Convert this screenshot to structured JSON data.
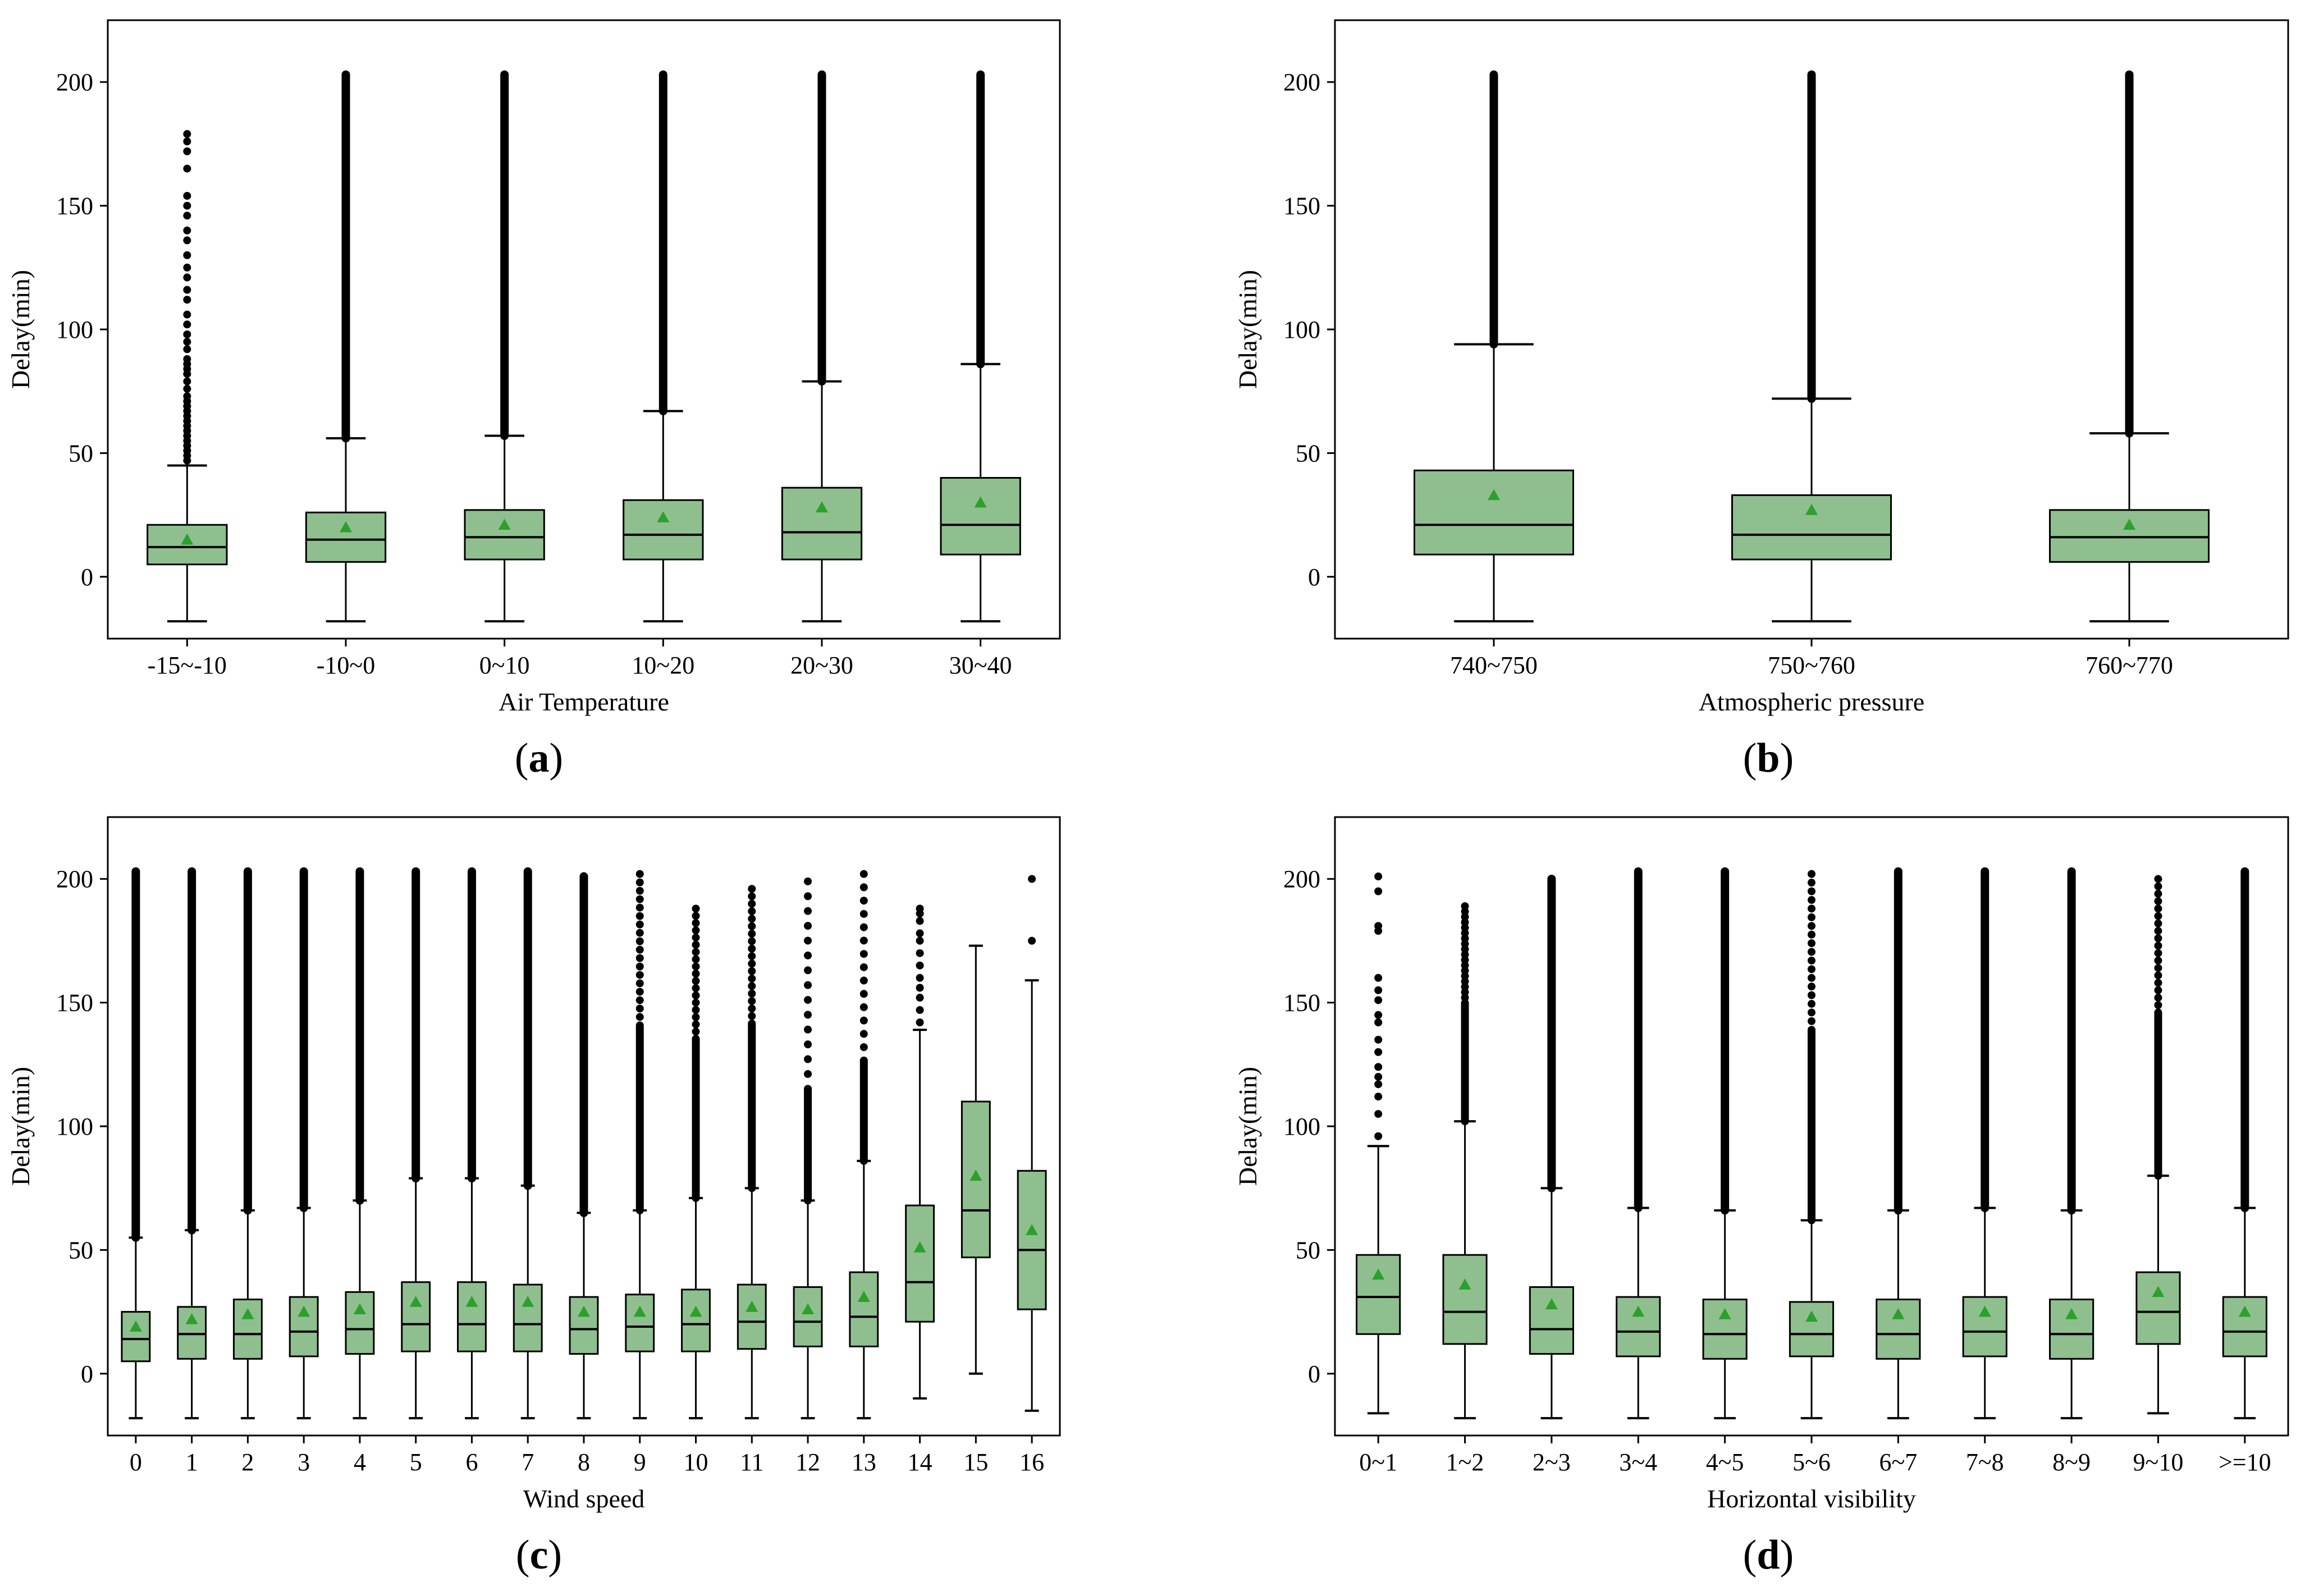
{
  "colors": {
    "box_fill": "#8fbf8f",
    "mean_marker": "#2ca02c",
    "line": "#000000"
  },
  "chart_data": [
    {
      "type": "boxplot",
      "panel_label": "a",
      "xlabel": "Air Temperature",
      "ylabel": "Delay(min)",
      "ylim": [
        -25,
        225
      ],
      "yticks": [
        0,
        50,
        100,
        150,
        200
      ],
      "categories": [
        "-15~-10",
        "-10~0",
        "0~10",
        "10~20",
        "20~30",
        "30~40"
      ],
      "boxes": [
        {
          "whislo": -18,
          "q1": 5,
          "med": 12,
          "q3": 21,
          "whishi": 45,
          "mean": 15,
          "flier_max": 179,
          "flier_mode": "sparse",
          "sparse_fliers": [
            47,
            49,
            51,
            53,
            55,
            57,
            59,
            61,
            63,
            65,
            67,
            69,
            71,
            73,
            76,
            79,
            82,
            84,
            86,
            88,
            92,
            95,
            98,
            102,
            106,
            112,
            116,
            121,
            125,
            130,
            136,
            140,
            146,
            150,
            154,
            165,
            172,
            176,
            179
          ]
        },
        {
          "whislo": -18,
          "q1": 6,
          "med": 15,
          "q3": 26,
          "whishi": 56,
          "mean": 20,
          "flier_max": 203,
          "flier_mode": "dense"
        },
        {
          "whislo": -18,
          "q1": 7,
          "med": 16,
          "q3": 27,
          "whishi": 57,
          "mean": 21,
          "flier_max": 203,
          "flier_mode": "dense"
        },
        {
          "whislo": -18,
          "q1": 7,
          "med": 17,
          "q3": 31,
          "whishi": 67,
          "mean": 24,
          "flier_max": 203,
          "flier_mode": "dense"
        },
        {
          "whislo": -18,
          "q1": 7,
          "med": 18,
          "q3": 36,
          "whishi": 79,
          "mean": 28,
          "flier_max": 203,
          "flier_mode": "dense"
        },
        {
          "whislo": -18,
          "q1": 9,
          "med": 21,
          "q3": 40,
          "whishi": 86,
          "mean": 30,
          "flier_max": 203,
          "flier_mode": "dense"
        }
      ]
    },
    {
      "type": "boxplot",
      "panel_label": "b",
      "xlabel": "Atmospheric pressure",
      "ylabel": "Delay(min)",
      "ylim": [
        -25,
        225
      ],
      "yticks": [
        0,
        50,
        100,
        150,
        200
      ],
      "categories": [
        "740~750",
        "750~760",
        "760~770"
      ],
      "boxes": [
        {
          "whislo": -18,
          "q1": 9,
          "med": 21,
          "q3": 43,
          "whishi": 94,
          "mean": 33,
          "flier_max": 203,
          "flier_mode": "dense"
        },
        {
          "whislo": -18,
          "q1": 7,
          "med": 17,
          "q3": 33,
          "whishi": 72,
          "mean": 27,
          "flier_max": 203,
          "flier_mode": "dense"
        },
        {
          "whislo": -18,
          "q1": 6,
          "med": 16,
          "q3": 27,
          "whishi": 58,
          "mean": 21,
          "flier_max": 203,
          "flier_mode": "dense"
        }
      ]
    },
    {
      "type": "boxplot",
      "panel_label": "c",
      "xlabel": "Wind speed",
      "ylabel": "Delay(min)",
      "ylim": [
        -25,
        225
      ],
      "yticks": [
        0,
        50,
        100,
        150,
        200
      ],
      "categories": [
        "0",
        "1",
        "2",
        "3",
        "4",
        "5",
        "6",
        "7",
        "8",
        "9",
        "10",
        "11",
        "12",
        "13",
        "14",
        "15",
        "16"
      ],
      "boxes": [
        {
          "whislo": -18,
          "q1": 5,
          "med": 14,
          "q3": 25,
          "whishi": 55,
          "mean": 19,
          "flier_max": 203,
          "flier_mode": "dense"
        },
        {
          "whislo": -18,
          "q1": 6,
          "med": 16,
          "q3": 27,
          "whishi": 58,
          "mean": 22,
          "flier_max": 203,
          "flier_mode": "dense"
        },
        {
          "whislo": -18,
          "q1": 6,
          "med": 16,
          "q3": 30,
          "whishi": 66,
          "mean": 24,
          "flier_max": 203,
          "flier_mode": "dense"
        },
        {
          "whislo": -18,
          "q1": 7,
          "med": 17,
          "q3": 31,
          "whishi": 67,
          "mean": 25,
          "flier_max": 203,
          "flier_mode": "dense"
        },
        {
          "whislo": -18,
          "q1": 8,
          "med": 18,
          "q3": 33,
          "whishi": 70,
          "mean": 26,
          "flier_max": 203,
          "flier_mode": "dense"
        },
        {
          "whislo": -18,
          "q1": 9,
          "med": 20,
          "q3": 37,
          "whishi": 79,
          "mean": 29,
          "flier_max": 203,
          "flier_mode": "dense"
        },
        {
          "whislo": -18,
          "q1": 9,
          "med": 20,
          "q3": 37,
          "whishi": 79,
          "mean": 29,
          "flier_max": 203,
          "flier_mode": "dense"
        },
        {
          "whislo": -18,
          "q1": 9,
          "med": 20,
          "q3": 36,
          "whishi": 76,
          "mean": 29,
          "flier_max": 203,
          "flier_mode": "dense"
        },
        {
          "whislo": -18,
          "q1": 8,
          "med": 18,
          "q3": 31,
          "whishi": 65,
          "mean": 25,
          "flier_max": 201,
          "flier_mode": "dense"
        },
        {
          "whislo": -18,
          "q1": 9,
          "med": 19,
          "q3": 32,
          "whishi": 66,
          "mean": 25,
          "flier_max": 202,
          "flier_mode": "medium"
        },
        {
          "whislo": -18,
          "q1": 9,
          "med": 20,
          "q3": 34,
          "whishi": 71,
          "mean": 25,
          "flier_max": 188,
          "flier_mode": "medium"
        },
        {
          "whislo": -18,
          "q1": 10,
          "med": 21,
          "q3": 36,
          "whishi": 75,
          "mean": 27,
          "flier_max": 196,
          "flier_mode": "medium"
        },
        {
          "whislo": -18,
          "q1": 11,
          "med": 21,
          "q3": 35,
          "whishi": 70,
          "mean": 26,
          "flier_max": 199,
          "flier_mode": "light"
        },
        {
          "whislo": -18,
          "q1": 11,
          "med": 23,
          "q3": 41,
          "whishi": 86,
          "mean": 31,
          "flier_max": 202,
          "flier_mode": "light"
        },
        {
          "whislo": -10,
          "q1": 21,
          "med": 37,
          "q3": 68,
          "whishi": 139,
          "mean": 51,
          "flier_max": 188,
          "flier_mode": "sparse",
          "sparse_fliers": [
            142,
            147,
            152,
            156,
            160,
            165,
            170,
            175,
            178,
            183,
            186,
            188
          ]
        },
        {
          "whislo": 0,
          "q1": 47,
          "med": 66,
          "q3": 110,
          "whishi": 173,
          "mean": 80,
          "flier_max": 173,
          "flier_mode": "none"
        },
        {
          "whislo": -15,
          "q1": 26,
          "med": 50,
          "q3": 82,
          "whishi": 159,
          "mean": 58,
          "flier_max": 200,
          "flier_mode": "sparse",
          "sparse_fliers": [
            175,
            200
          ]
        }
      ]
    },
    {
      "type": "boxplot",
      "panel_label": "d",
      "xlabel": "Horizontal visibility",
      "ylabel": "Delay(min)",
      "ylim": [
        -25,
        225
      ],
      "yticks": [
        0,
        50,
        100,
        150,
        200
      ],
      "categories": [
        "0~1",
        "1~2",
        "2~3",
        "3~4",
        "4~5",
        "5~6",
        "6~7",
        "7~8",
        "8~9",
        "9~10",
        ">=10"
      ],
      "boxes": [
        {
          "whislo": -16,
          "q1": 16,
          "med": 31,
          "q3": 48,
          "whishi": 92,
          "mean": 40,
          "flier_max": 201,
          "flier_mode": "sparse",
          "sparse_fliers": [
            96,
            105,
            112,
            117,
            120,
            124,
            130,
            135,
            142,
            145,
            151,
            155,
            160,
            179,
            181,
            195,
            201
          ]
        },
        {
          "whislo": -18,
          "q1": 12,
          "med": 25,
          "q3": 48,
          "whishi": 102,
          "mean": 36,
          "flier_max": 189,
          "flier_mode": "medium"
        },
        {
          "whislo": -18,
          "q1": 8,
          "med": 18,
          "q3": 35,
          "whishi": 75,
          "mean": 28,
          "flier_max": 200,
          "flier_mode": "dense"
        },
        {
          "whislo": -18,
          "q1": 7,
          "med": 17,
          "q3": 31,
          "whishi": 67,
          "mean": 25,
          "flier_max": 203,
          "flier_mode": "dense"
        },
        {
          "whislo": -18,
          "q1": 6,
          "med": 16,
          "q3": 30,
          "whishi": 66,
          "mean": 24,
          "flier_max": 203,
          "flier_mode": "dense"
        },
        {
          "whislo": -18,
          "q1": 7,
          "med": 16,
          "q3": 29,
          "whishi": 62,
          "mean": 23,
          "flier_max": 202,
          "flier_mode": "medium"
        },
        {
          "whislo": -18,
          "q1": 6,
          "med": 16,
          "q3": 30,
          "whishi": 66,
          "mean": 24,
          "flier_max": 203,
          "flier_mode": "dense"
        },
        {
          "whislo": -18,
          "q1": 7,
          "med": 17,
          "q3": 31,
          "whishi": 67,
          "mean": 25,
          "flier_max": 203,
          "flier_mode": "dense"
        },
        {
          "whislo": -18,
          "q1": 6,
          "med": 16,
          "q3": 30,
          "whishi": 66,
          "mean": 24,
          "flier_max": 203,
          "flier_mode": "dense"
        },
        {
          "whislo": -16,
          "q1": 12,
          "med": 25,
          "q3": 41,
          "whishi": 80,
          "mean": 33,
          "flier_max": 200,
          "flier_mode": "medium"
        },
        {
          "whislo": -18,
          "q1": 7,
          "med": 17,
          "q3": 31,
          "whishi": 67,
          "mean": 25,
          "flier_max": 203,
          "flier_mode": "dense"
        }
      ]
    }
  ]
}
